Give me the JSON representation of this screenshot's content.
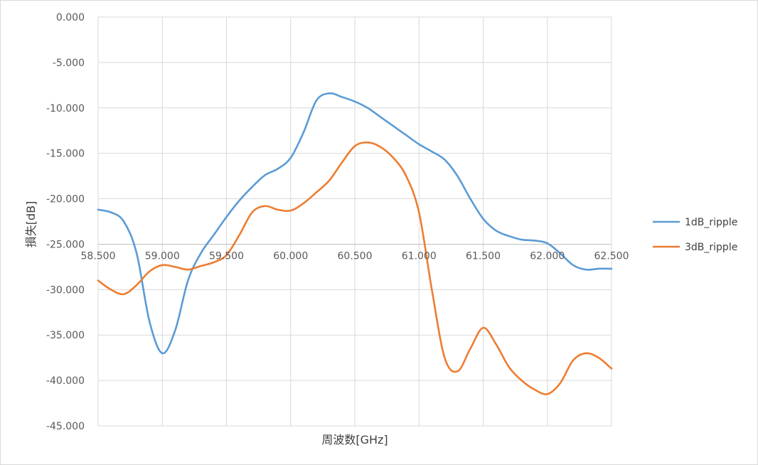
{
  "chart_data": {
    "type": "line",
    "title": "",
    "xlabel": "周波数[GHz]",
    "ylabel": "損失[dB]",
    "xlim": [
      58.5,
      62.5
    ],
    "ylim": [
      -45,
      0
    ],
    "x_ticks": [
      "58.500",
      "59.000",
      "59.500",
      "60.000",
      "60.500",
      "61.000",
      "61.500",
      "62.000",
      "62.500"
    ],
    "y_ticks": [
      "0.000",
      "-5.000",
      "-10.000",
      "-15.000",
      "-20.000",
      "-25.000",
      "-30.000",
      "-35.000",
      "-40.000",
      "-45.000"
    ],
    "x_axis_crosses_y": -25,
    "grid": true,
    "legend_position": "right",
    "series": [
      {
        "name": "1dB_ripple",
        "color": "#5b9bd5",
        "x": [
          58.5,
          58.6,
          58.7,
          58.8,
          58.9,
          59.0,
          59.1,
          59.2,
          59.3,
          59.4,
          59.5,
          59.6,
          59.7,
          59.8,
          59.9,
          60.0,
          60.1,
          60.2,
          60.3,
          60.4,
          60.5,
          60.6,
          60.7,
          60.8,
          60.9,
          61.0,
          61.1,
          61.2,
          61.3,
          61.4,
          61.5,
          61.6,
          61.7,
          61.8,
          61.9,
          62.0,
          62.1,
          62.2,
          62.3,
          62.4,
          62.5
        ],
        "y": [
          -21.2,
          -21.5,
          -22.5,
          -26.0,
          -33.5,
          -37.0,
          -34.5,
          -29.0,
          -26.0,
          -24.0,
          -22.0,
          -20.2,
          -18.7,
          -17.4,
          -16.7,
          -15.5,
          -12.7,
          -9.2,
          -8.4,
          -8.8,
          -9.3,
          -10.0,
          -11.0,
          -12.0,
          -13.0,
          -14.0,
          -14.8,
          -15.7,
          -17.5,
          -20.0,
          -22.2,
          -23.5,
          -24.1,
          -24.5,
          -24.6,
          -24.9,
          -26.0,
          -27.3,
          -27.8,
          -27.7,
          -27.7
        ]
      },
      {
        "name": "3dB_ripple",
        "color": "#ed7d31",
        "x": [
          58.5,
          58.6,
          58.7,
          58.8,
          58.9,
          59.0,
          59.1,
          59.2,
          59.3,
          59.4,
          59.5,
          59.6,
          59.7,
          59.8,
          59.9,
          60.0,
          60.1,
          60.2,
          60.3,
          60.4,
          60.5,
          60.6,
          60.7,
          60.8,
          60.9,
          61.0,
          61.1,
          61.2,
          61.3,
          61.4,
          61.5,
          61.6,
          61.7,
          61.8,
          61.9,
          62.0,
          62.1,
          62.2,
          62.3,
          62.4,
          62.5
        ],
        "y": [
          -29.0,
          -30.0,
          -30.5,
          -29.5,
          -28.0,
          -27.3,
          -27.5,
          -27.8,
          -27.4,
          -27.0,
          -26.2,
          -24.0,
          -21.5,
          -20.8,
          -21.2,
          -21.3,
          -20.5,
          -19.3,
          -18.0,
          -16.0,
          -14.2,
          -13.8,
          -14.3,
          -15.5,
          -17.5,
          -21.5,
          -30.0,
          -37.5,
          -39.0,
          -36.5,
          -34.2,
          -36.0,
          -38.5,
          -40.0,
          -41.0,
          -41.5,
          -40.3,
          -37.8,
          -37.0,
          -37.5,
          -38.7
        ]
      }
    ]
  }
}
